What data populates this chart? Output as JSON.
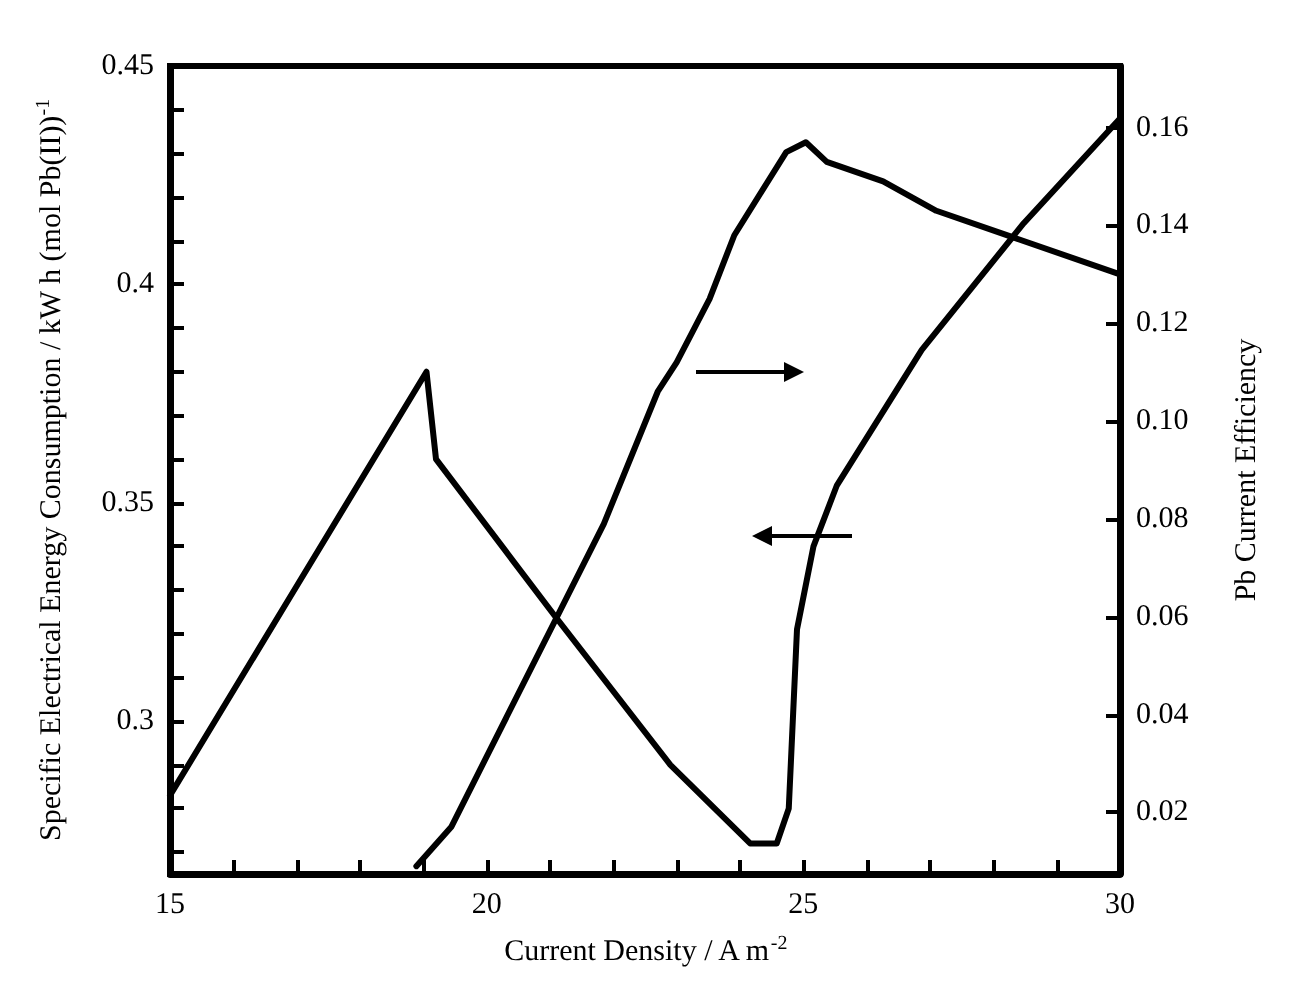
{
  "chart_data": {
    "type": "line",
    "xlabel": "Current Density / A m$^{-2}$",
    "ylabel": "Specific Electrical Energy Consumption / kW h (mol Pb(II))$^{-1}$",
    "y2label": "Pb Current Efficiency",
    "xlim": [
      15,
      30
    ],
    "xticks": [
      15,
      {
        "value": 16,
        "label": null
      },
      {
        "value": 17,
        "label": null
      },
      {
        "value": 18,
        "label": null
      },
      {
        "value": 19,
        "label": null
      },
      20,
      {
        "value": 21,
        "label": null
      },
      {
        "value": 22,
        "label": null
      },
      {
        "value": 23,
        "label": null
      },
      {
        "value": 24,
        "label": null
      },
      25,
      {
        "value": 26,
        "label": null
      },
      {
        "value": 27,
        "label": null
      },
      {
        "value": 28,
        "label": null
      },
      {
        "value": 29,
        "label": null
      },
      30
    ],
    "ylim": [
      0.265,
      0.45
    ],
    "yticks": [
      {
        "value": 0.27,
        "label": null
      },
      {
        "value": 0.28,
        "label": null
      },
      {
        "value": 0.29,
        "label": null
      },
      0.3,
      {
        "value": 0.31,
        "label": null
      },
      {
        "value": 0.32,
        "label": null
      },
      {
        "value": 0.33,
        "label": null
      },
      {
        "value": 0.34,
        "label": null
      },
      0.35,
      {
        "value": 0.36,
        "label": null
      },
      {
        "value": 0.37,
        "label": null
      },
      {
        "value": 0.38,
        "label": null
      },
      {
        "value": 0.39,
        "label": null
      },
      0.4,
      {
        "value": 0.41,
        "label": null
      },
      {
        "value": 0.42,
        "label": null
      },
      {
        "value": 0.43,
        "label": null
      },
      {
        "value": 0.44,
        "label": null
      },
      0.45
    ],
    "y2lim": [
      0.0074,
      0.1726
    ],
    "y2ticks": [
      0.02,
      0.04,
      0.06,
      0.08,
      {
        "value": 0.1,
        "label": "0.10"
      },
      0.12,
      0.14,
      0.16
    ],
    "grid": false,
    "marker": "none",
    "line_style": "solid",
    "series": [
      {
        "color": "#000000",
        "x": [
          15,
          16.92,
          19.05,
          19.2,
          21.08,
          22.9,
          24.16,
          24.58,
          24.77,
          24.9,
          25.16,
          25.53,
          26.87,
          28.48,
          30
        ],
        "values": [
          0.283,
          0.329,
          0.38,
          0.36,
          0.324,
          0.29,
          0.272,
          0.272,
          0.28,
          0.321,
          0.34,
          0.354,
          0.385,
          0.414,
          0.438
        ]
      },
      {
        "color": "#000000",
        "axis": "y2",
        "x": [
          18.89,
          19.44,
          21.85,
          22.7,
          23.0,
          23.52,
          23.91,
          24.73,
          25.04,
          25.37,
          26.26,
          27.1,
          30
        ],
        "values": [
          0.009,
          0.017,
          0.079,
          0.106,
          0.112,
          0.125,
          0.138,
          0.155,
          0.157,
          0.153,
          0.149,
          0.143,
          0.13
        ]
      }
    ]
  }
}
